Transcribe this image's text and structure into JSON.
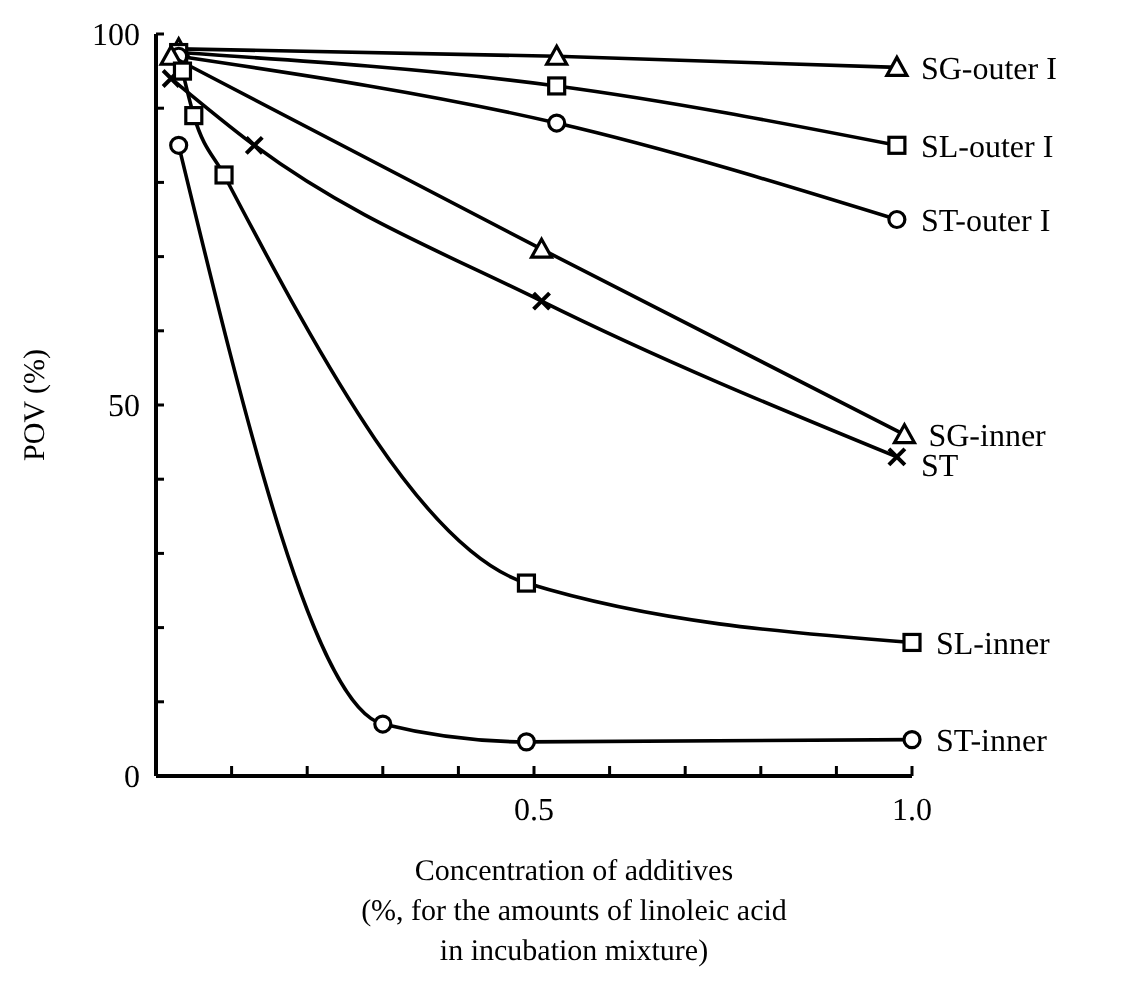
{
  "chart_data": {
    "type": "line",
    "xlabel": "Concentration of additives\n(%, for the amounts of linoleic acid\nin incubation mixture)",
    "ylabel": "POV (%)",
    "xlim": [
      0,
      1.0
    ],
    "ylim": [
      0,
      100
    ],
    "xticks": [
      {
        "value": 0.1,
        "label": null
      },
      {
        "value": 0.2,
        "label": null
      },
      {
        "value": 0.3,
        "label": null
      },
      {
        "value": 0.4,
        "label": null
      },
      0.5,
      {
        "value": 0.6,
        "label": null
      },
      {
        "value": 0.7,
        "label": null
      },
      {
        "value": 0.8,
        "label": null
      },
      {
        "value": 0.9,
        "label": null
      },
      {
        "value": 1,
        "label": "1.0"
      }
    ],
    "yticks": [
      0,
      {
        "value": 10,
        "label": null
      },
      {
        "value": 20,
        "label": null
      },
      {
        "value": 30,
        "label": null
      },
      {
        "value": 40,
        "label": null
      },
      50,
      {
        "value": 60,
        "label": null
      },
      {
        "value": 70,
        "label": null
      },
      {
        "value": 80,
        "label": null
      },
      {
        "value": 90,
        "label": null
      },
      100
    ],
    "grid": false,
    "line_style": "solid",
    "series": [
      {
        "name": "SG-outer I",
        "color": "#000000",
        "marker": "triangle",
        "x": [
          0.03,
          0.53,
          0.98
        ],
        "values": [
          98,
          97,
          95.5
        ]
      },
      {
        "name": "SL-outer I",
        "color": "#000000",
        "marker": "square",
        "x": [
          0.03,
          0.53,
          0.98
        ],
        "values": [
          97.5,
          93,
          85
        ]
      },
      {
        "name": "ST-outer I",
        "color": "#000000",
        "marker": "circle",
        "x": [
          0.03,
          0.53,
          0.98
        ],
        "values": [
          97,
          88,
          75
        ]
      },
      {
        "name": "SG-inner",
        "color": "#000000",
        "marker": "triangle",
        "x": [
          0.02,
          0.51,
          0.99
        ],
        "values": [
          97,
          71,
          46
        ]
      },
      {
        "name": "ST",
        "color": "#000000",
        "marker": "cross",
        "x": [
          0.02,
          0.13,
          0.51,
          0.98
        ],
        "values": [
          94,
          85,
          64,
          43
        ]
      },
      {
        "name": "SL-inner",
        "color": "#000000",
        "marker": "square",
        "x": [
          0.035,
          0.05,
          0.09,
          0.49,
          1.0
        ],
        "values": [
          95,
          89,
          81,
          26,
          18
        ]
      },
      {
        "name": "ST-inner",
        "color": "#000000",
        "marker": "circle",
        "x": [
          0.03,
          0.3,
          0.49,
          1.0
        ],
        "values": [
          85,
          7,
          4.6,
          4.9
        ]
      }
    ]
  }
}
